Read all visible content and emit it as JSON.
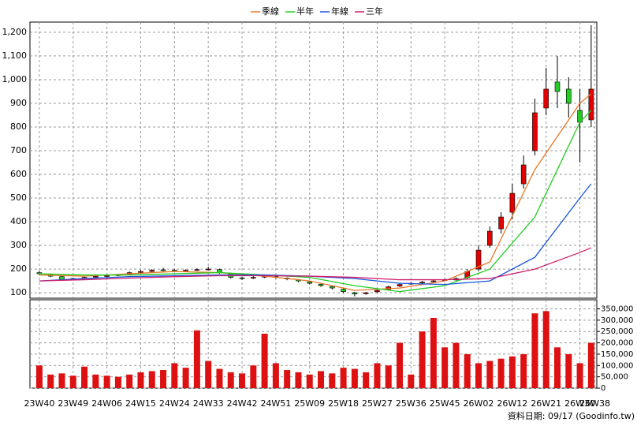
{
  "chart_data": {
    "type": "candlestick",
    "legend": [
      {
        "name": "季線",
        "color": "#e8782a"
      },
      {
        "name": "半年",
        "color": "#22cc22"
      },
      {
        "name": "年線",
        "color": "#1a55dd"
      },
      {
        "name": "三年",
        "color": "#d0206a"
      }
    ],
    "xticks": [
      {
        "value": 0,
        "label": "23W40"
      },
      {
        "value": 9,
        "label": "23W49"
      },
      {
        "value": 18,
        "label": "24W06"
      },
      {
        "value": 27,
        "label": "24W15"
      },
      {
        "value": 36,
        "label": "24W24"
      },
      {
        "value": 45,
        "label": "24W33"
      },
      {
        "value": 54,
        "label": "24W42"
      },
      {
        "value": 63,
        "label": "24W51"
      },
      {
        "value": 72,
        "label": "25W09"
      },
      {
        "value": 81,
        "label": "25W18"
      },
      {
        "value": 90,
        "label": "25W27"
      },
      {
        "value": 99,
        "label": "25W36"
      },
      {
        "value": 108,
        "label": "25W45"
      },
      {
        "value": 117,
        "label": "26W02"
      },
      {
        "value": 126,
        "label": "26W12"
      },
      {
        "value": 135,
        "label": "26W21"
      },
      {
        "value": 144,
        "label": "26W30"
      },
      {
        "value": 148,
        "label": "26W38"
      }
    ],
    "xlim": [
      -2.5,
      148.5
    ],
    "ylim": [
      77,
      1243
    ],
    "yticks": [
      100,
      200,
      300,
      400,
      500,
      600,
      700,
      800,
      900,
      {
        "value": 1000,
        "label": "1,000"
      },
      {
        "value": 1100,
        "label": "1,100"
      },
      {
        "value": 1200,
        "label": "1,200"
      }
    ],
    "y2lim": [
      0,
      390000
    ],
    "y2ticks": [
      0,
      {
        "value": 50000,
        "label": "50,000"
      },
      {
        "value": 100000,
        "label": "100,000"
      },
      {
        "value": 150000,
        "label": "150,000"
      },
      {
        "value": 200000,
        "label": "200,000"
      },
      {
        "value": 250000,
        "label": "250,000"
      },
      {
        "value": 300000,
        "label": "300,000"
      },
      {
        "value": 350000,
        "label": "350,000"
      }
    ],
    "grid": true,
    "up_color": "#e00000",
    "down_color": "#22cc22",
    "volume_color": "#dd1111",
    "x": [
      0,
      3,
      6,
      9,
      12,
      15,
      18,
      21,
      24,
      27,
      30,
      33,
      36,
      39,
      42,
      45,
      48,
      51,
      54,
      57,
      60,
      63,
      66,
      69,
      72,
      75,
      78,
      81,
      84,
      87,
      90,
      93,
      96,
      99,
      102,
      105,
      108,
      111,
      114,
      117,
      120,
      123,
      126,
      129,
      132,
      135,
      138,
      141,
      144,
      147
    ],
    "open": [
      185,
      178,
      168,
      156,
      161,
      166,
      171,
      176,
      178,
      186,
      190,
      197,
      195,
      191,
      196,
      197,
      198,
      180,
      163,
      162,
      166,
      168,
      162,
      155,
      146,
      136,
      126,
      115,
      100,
      96,
      104,
      114,
      128,
      137,
      142,
      147,
      152,
      154,
      165,
      200,
      300,
      370,
      440,
      560,
      700,
      880,
      990,
      960,
      870,
      830
    ],
    "high": [
      192,
      182,
      170,
      163,
      168,
      174,
      176,
      180,
      190,
      196,
      200,
      205,
      200,
      199,
      203,
      210,
      202,
      184,
      168,
      170,
      175,
      172,
      165,
      158,
      150,
      140,
      130,
      118,
      104,
      104,
      114,
      130,
      140,
      145,
      150,
      155,
      160,
      165,
      200,
      300,
      380,
      440,
      560,
      680,
      920,
      1050,
      1100,
      1010,
      960,
      1230
    ],
    "low": [
      176,
      166,
      150,
      152,
      158,
      163,
      166,
      170,
      174,
      183,
      186,
      190,
      186,
      188,
      192,
      194,
      180,
      160,
      154,
      158,
      162,
      160,
      153,
      145,
      136,
      125,
      114,
      100,
      85,
      92,
      100,
      110,
      124,
      133,
      138,
      144,
      149,
      151,
      160,
      190,
      290,
      350,
      410,
      540,
      680,
      850,
      880,
      840,
      650,
      800
    ],
    "close": [
      180,
      170,
      155,
      160,
      165,
      170,
      172,
      175,
      185,
      190,
      195,
      195,
      192,
      195,
      198,
      200,
      185,
      165,
      160,
      165,
      170,
      165,
      158,
      150,
      140,
      130,
      120,
      105,
      95,
      100,
      110,
      125,
      135,
      140,
      145,
      150,
      155,
      160,
      190,
      280,
      360,
      420,
      520,
      640,
      860,
      960,
      950,
      900,
      820,
      960
    ],
    "volume": [
      100000,
      60000,
      65000,
      55000,
      95000,
      60000,
      55000,
      50000,
      60000,
      70000,
      75000,
      80000,
      110000,
      90000,
      255000,
      120000,
      85000,
      70000,
      65000,
      100000,
      240000,
      110000,
      80000,
      70000,
      60000,
      75000,
      65000,
      90000,
      85000,
      70000,
      110000,
      100000,
      200000,
      60000,
      250000,
      310000,
      180000,
      200000,
      150000,
      110000,
      120000,
      130000,
      140000,
      150000,
      330000,
      340000,
      180000,
      150000,
      110000,
      200000
    ],
    "ma_x": [
      0,
      12,
      24,
      36,
      48,
      60,
      72,
      84,
      96,
      108,
      120,
      132,
      144,
      147
    ],
    "ma": [
      [
        175,
        170,
        180,
        190,
        185,
        170,
        150,
        110,
        120,
        150,
        230,
        620,
        900,
        940
      ],
      [
        180,
        175,
        175,
        180,
        185,
        175,
        165,
        130,
        105,
        130,
        200,
        420,
        820,
        870
      ],
      [
        150,
        160,
        168,
        172,
        175,
        175,
        170,
        160,
        140,
        135,
        150,
        250,
        500,
        560
      ],
      [
        150,
        155,
        162,
        168,
        172,
        172,
        170,
        165,
        155,
        155,
        160,
        200,
        270,
        290
      ]
    ],
    "footer": "資料日期: 09/17 (Goodinfo.tw)"
  }
}
